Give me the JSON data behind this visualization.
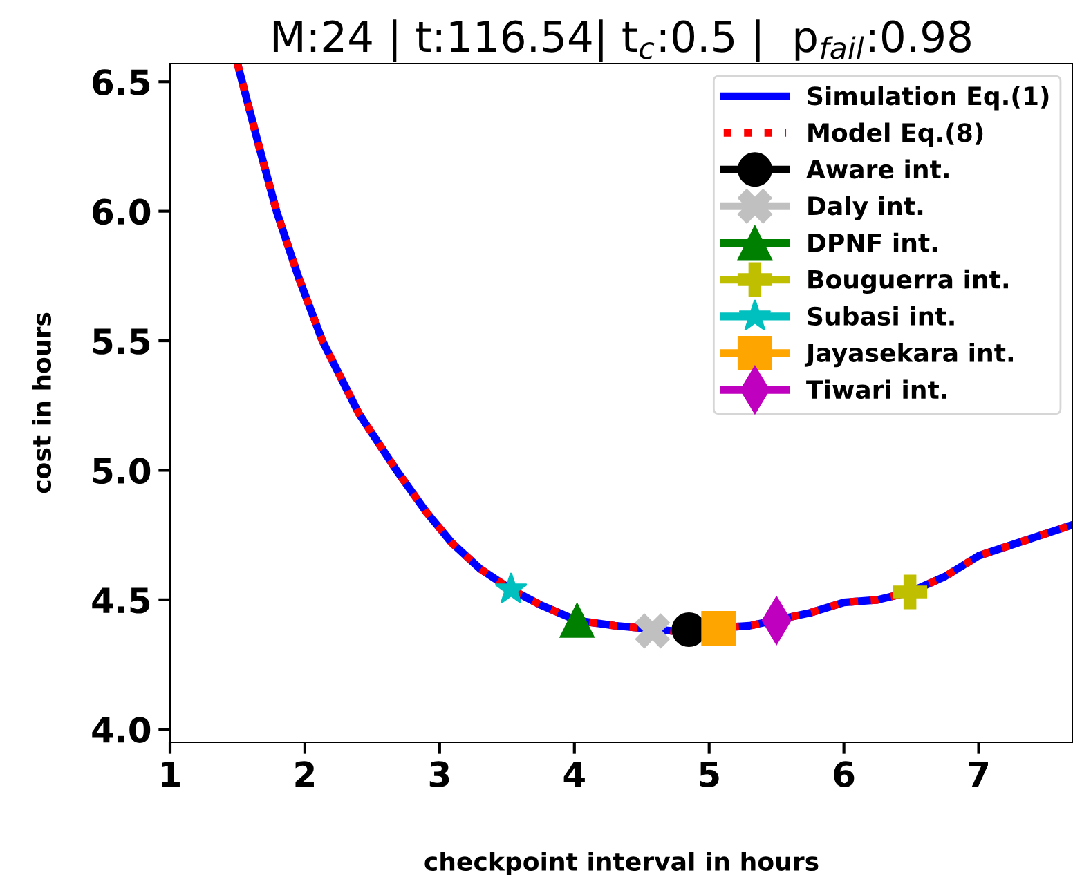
{
  "chart_data": {
    "type": "line",
    "title": "M:24 | t:116.54| t$_{c}$:0.5 |  p$_{fail}$:0.98",
    "xlabel": "checkpoint interval in hours",
    "ylabel": "cost in hours",
    "xlim": [
      1,
      7.7
    ],
    "ylim": [
      3.95,
      6.57
    ],
    "xticks": [
      1,
      2,
      3,
      4,
      5,
      6,
      7
    ],
    "yticks": [
      {
        "value": 4.0,
        "label": "4.0"
      },
      {
        "value": 4.5,
        "label": "4.5"
      },
      {
        "value": 5.0,
        "label": "5.0"
      },
      {
        "value": 5.5,
        "label": "5.5"
      },
      {
        "value": 6.0,
        "label": "6.0"
      },
      {
        "value": 6.5,
        "label": "6.5"
      }
    ],
    "grid": false,
    "legend": "top right",
    "series": [
      {
        "name": "Simulation Eq.(1)",
        "color": "#0000ff",
        "line_style": "solid",
        "marker": "none",
        "x": [
          1.5,
          1.65,
          1.79,
          1.95,
          2.13,
          2.4,
          2.68,
          2.9,
          3.09,
          3.3,
          3.53,
          3.75,
          4.02,
          4.3,
          4.72,
          5.3,
          5.75,
          6.0,
          6.25,
          6.49,
          6.75,
          7.0,
          7.35,
          7.7
        ],
        "values": [
          6.57,
          6.27,
          6.0,
          5.75,
          5.5,
          5.22,
          5.0,
          4.84,
          4.72,
          4.62,
          4.54,
          4.48,
          4.42,
          4.4,
          4.38,
          4.4,
          4.45,
          4.49,
          4.5,
          4.53,
          4.59,
          4.67,
          4.73,
          4.79
        ]
      },
      {
        "name": "Model Eq.(8)",
        "color": "#ff0000",
        "line_style": "dotted",
        "marker": "none",
        "x": [
          1.5,
          1.65,
          1.79,
          1.95,
          2.13,
          2.4,
          2.68,
          2.9,
          3.09,
          3.3,
          3.53,
          3.75,
          4.02,
          4.3,
          4.72,
          5.3,
          5.75,
          6.0,
          6.25,
          6.49,
          6.75,
          7.0,
          7.35,
          7.7
        ],
        "values": [
          6.57,
          6.27,
          6.0,
          5.75,
          5.5,
          5.22,
          5.0,
          4.84,
          4.72,
          4.62,
          4.54,
          4.48,
          4.42,
          4.4,
          4.38,
          4.4,
          4.45,
          4.49,
          4.5,
          4.53,
          4.59,
          4.67,
          4.73,
          4.79
        ]
      },
      {
        "name": "Aware int.",
        "color": "#000000",
        "type": "scatter",
        "marker": "circle",
        "x": [
          4.85
        ],
        "values": [
          4.385
        ]
      },
      {
        "name": "Daly int.",
        "color": "#c0c0c0",
        "type": "scatter",
        "marker": "x",
        "x": [
          4.58
        ],
        "values": [
          4.38
        ]
      },
      {
        "name": "DPNF int.",
        "color": "#008000",
        "type": "scatter",
        "marker": "triangle",
        "x": [
          4.02
        ],
        "values": [
          4.42
        ]
      },
      {
        "name": "Bouguerra int.",
        "color": "#bfbf00",
        "type": "scatter",
        "marker": "cross",
        "x": [
          6.49
        ],
        "values": [
          4.53
        ]
      },
      {
        "name": "Subasi int.",
        "color": "#00bfbf",
        "type": "scatter",
        "marker": "star",
        "x": [
          3.53
        ],
        "values": [
          4.54
        ]
      },
      {
        "name": "Jayasekara int.",
        "color": "#ffa500",
        "type": "scatter",
        "marker": "square",
        "x": [
          5.07
        ],
        "values": [
          4.39
        ]
      },
      {
        "name": "Tiwari int.",
        "color": "#bf00bf",
        "type": "scatter",
        "marker": "diamond",
        "x": [
          5.5
        ],
        "values": [
          4.42
        ]
      }
    ]
  }
}
